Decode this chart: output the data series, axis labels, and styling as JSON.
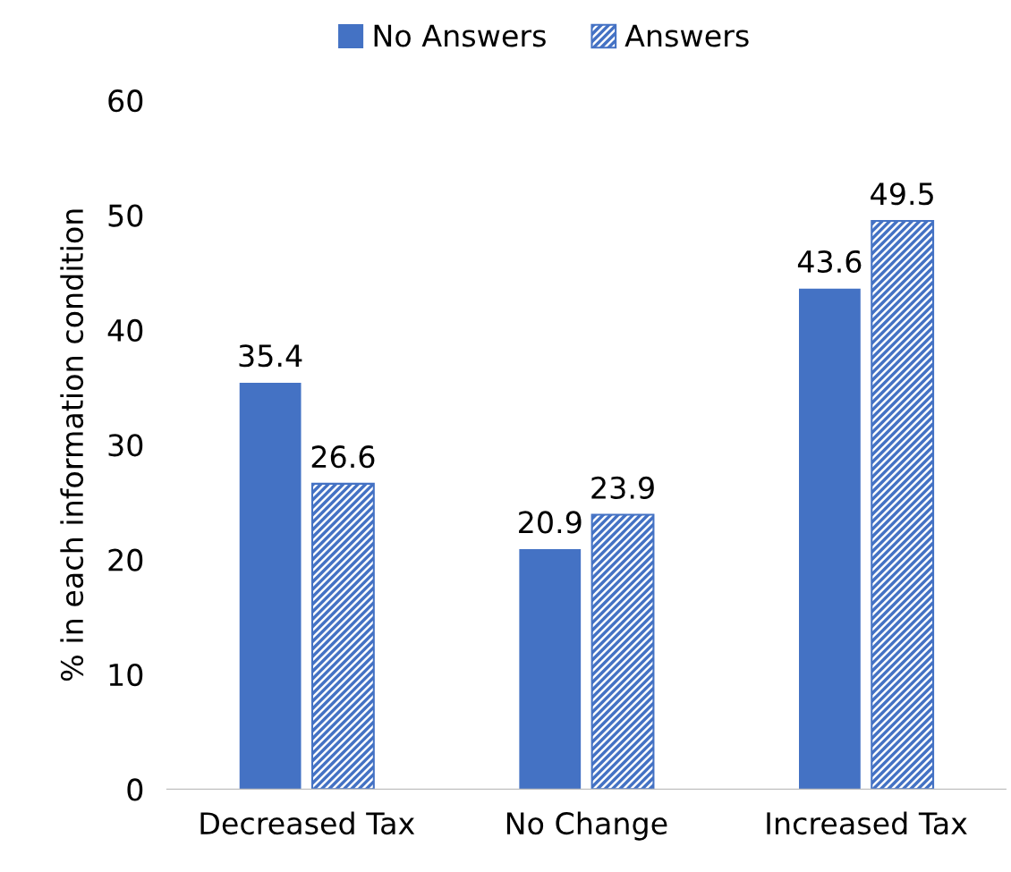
{
  "chart_data": {
    "type": "bar",
    "ylabel": "% in each information condition",
    "categories": [
      "Decreased Tax",
      "No Change",
      "Increased Tax"
    ],
    "series": [
      {
        "name": "No Answers",
        "color": "#4472c4",
        "values": [
          35.4,
          20.9,
          43.6
        ]
      },
      {
        "name": "Answers",
        "color": "#4472c4",
        "values": [
          26.6,
          23.9,
          49.5
        ]
      }
    ],
    "ylim": [
      0,
      60
    ],
    "yticks": [
      0,
      10,
      20,
      30,
      40,
      50,
      60
    ],
    "grid": false,
    "legend": "top",
    "data_labels": true
  }
}
